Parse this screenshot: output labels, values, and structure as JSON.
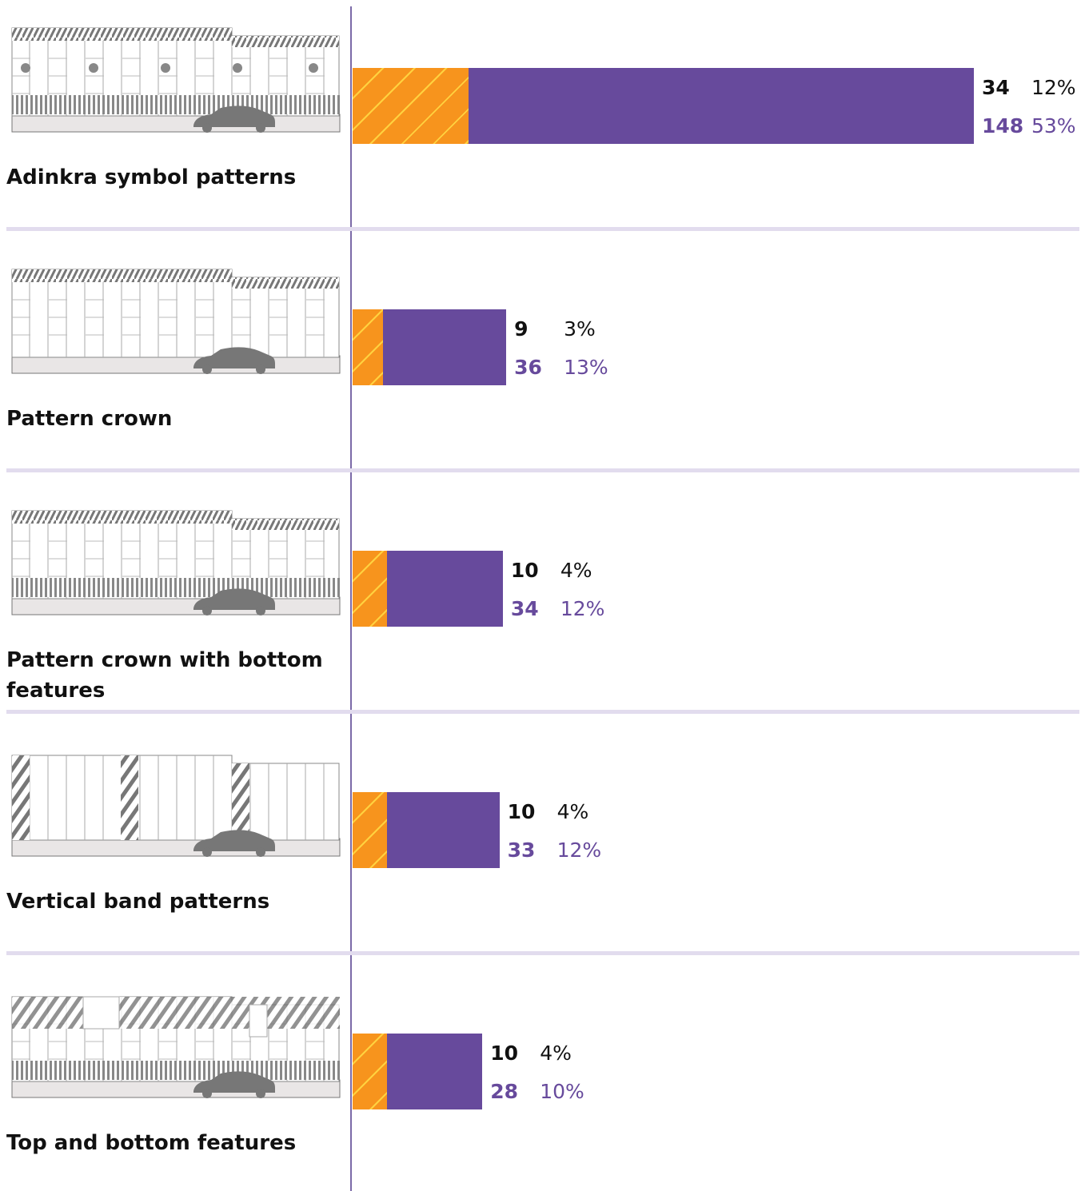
{
  "chart_data": {
    "type": "stacked-bar",
    "categories": [
      "Adinkra symbol patterns",
      "Pattern crown",
      "Pattern crown with bottom features",
      "Vertical band patterns",
      "Top and bottom features"
    ],
    "series": [
      {
        "color": "#f7941d",
        "label_color": "#111111",
        "values": [
          34,
          9,
          10,
          10,
          10
        ],
        "shares": [
          "12%",
          "3%",
          "4%",
          "4%",
          "4%"
        ]
      },
      {
        "color": "#674a9c",
        "label_color": "#674a9c",
        "values": [
          148,
          36,
          34,
          33,
          28
        ],
        "shares": [
          "53%",
          "13%",
          "12%",
          "12%",
          "10%"
        ]
      }
    ]
  }
}
